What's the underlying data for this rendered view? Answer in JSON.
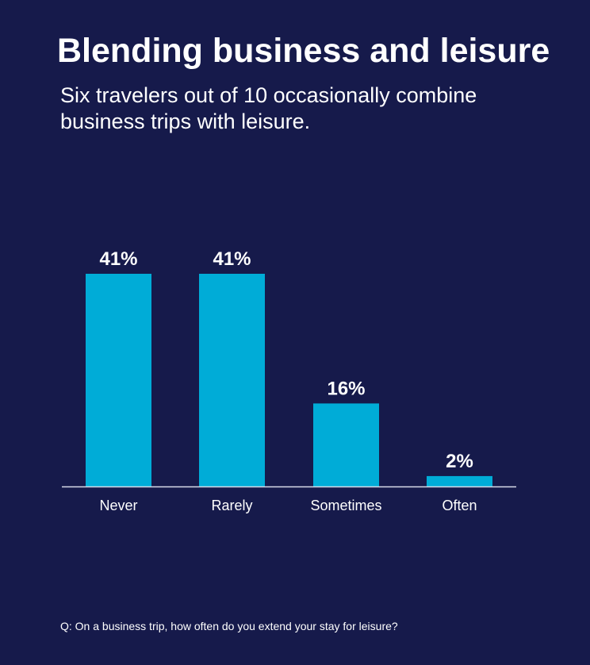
{
  "chart_data": {
    "type": "bar",
    "title": "Blending business and leisure",
    "subtitle": "Six travelers out of 10 occasionally combine business trips with leisure.",
    "categories": [
      "Never",
      "Rarely",
      "Sometimes",
      "Often"
    ],
    "values": [
      41,
      41,
      16,
      2
    ],
    "data_labels": [
      "41%",
      "41%",
      "16%",
      "2%"
    ],
    "xlabel": "",
    "ylabel": "",
    "ylim": [
      0,
      41
    ],
    "grid": false,
    "legend": "none",
    "footnote": "Q: On a business trip, how often do you extend your stay for leisure?"
  },
  "colors": {
    "background": "#161a4b",
    "bar": "#00acd7",
    "text": "#ffffff",
    "baseline": "#d8dbe8"
  }
}
